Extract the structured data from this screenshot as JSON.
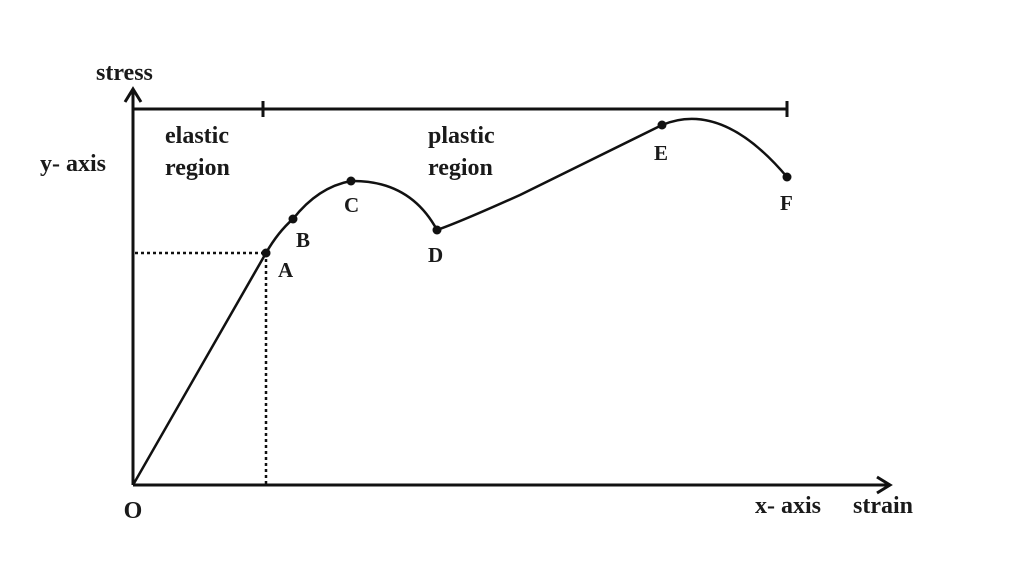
{
  "axes": {
    "y_title": "stress",
    "y_label": "y- axis",
    "x_label": "x- axis",
    "x_title": "strain",
    "origin": "O"
  },
  "regions": [
    {
      "lines": [
        "elastic",
        "region"
      ]
    },
    {
      "lines": [
        "plastic",
        "region"
      ]
    }
  ],
  "points": [
    {
      "label": "A"
    },
    {
      "label": "B"
    },
    {
      "label": "C"
    },
    {
      "label": "D"
    },
    {
      "label": "E"
    },
    {
      "label": "F"
    }
  ]
}
